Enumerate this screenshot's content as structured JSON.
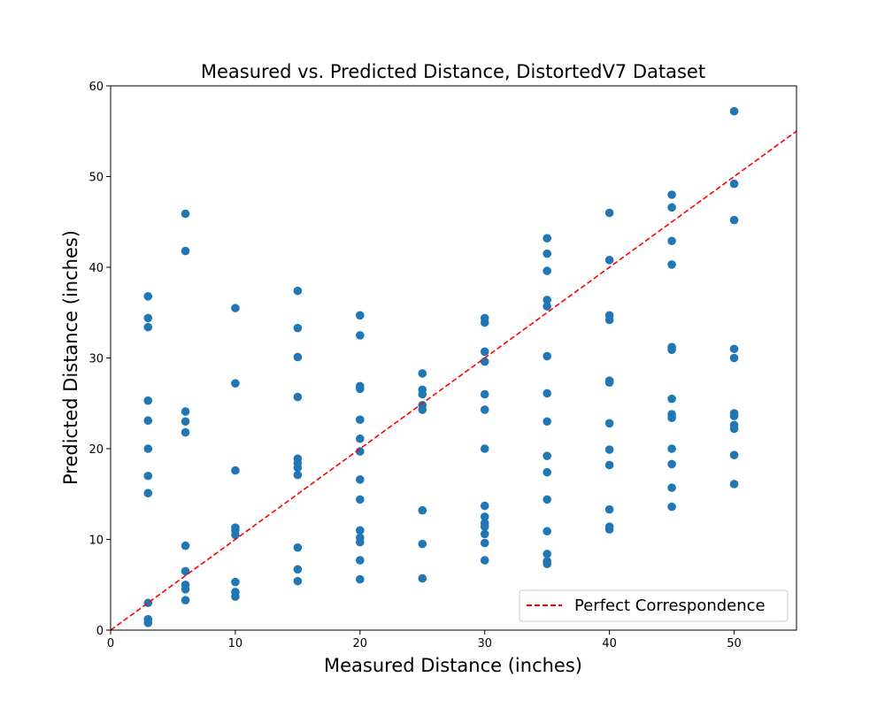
{
  "chart_data": {
    "type": "scatter",
    "title": "Measured vs. Predicted Distance, DistortedV7 Dataset",
    "xlabel": "Measured Distance (inches)",
    "ylabel": "Predicted Distance (inches)",
    "xlim": [
      0,
      55
    ],
    "ylim": [
      0,
      60
    ],
    "xticks": [
      0,
      10,
      20,
      30,
      40,
      50
    ],
    "yticks": [
      0,
      10,
      20,
      30,
      40,
      50,
      60
    ],
    "grid": false,
    "legend_position": "lower-right",
    "point_color": "#1f77b4",
    "reference_line": {
      "label": "Perfect Correspondence",
      "color": "#ff0000",
      "style": "dashed",
      "x": [
        0,
        55
      ],
      "y": [
        0,
        55
      ]
    },
    "points": [
      [
        3,
        36.8
      ],
      [
        3,
        34.4
      ],
      [
        3,
        33.4
      ],
      [
        3,
        25.3
      ],
      [
        3,
        23.1
      ],
      [
        3,
        20.0
      ],
      [
        3,
        17.0
      ],
      [
        3,
        15.1
      ],
      [
        3,
        3.0
      ],
      [
        3,
        1.2
      ],
      [
        3,
        0.8
      ],
      [
        6,
        45.9
      ],
      [
        6,
        41.8
      ],
      [
        6,
        24.1
      ],
      [
        6,
        23.0
      ],
      [
        6,
        21.8
      ],
      [
        6,
        9.3
      ],
      [
        6,
        6.5
      ],
      [
        6,
        5.0
      ],
      [
        6,
        4.5
      ],
      [
        6,
        3.3
      ],
      [
        10,
        35.5
      ],
      [
        10,
        27.2
      ],
      [
        10,
        17.6
      ],
      [
        10,
        11.3
      ],
      [
        10,
        11.0
      ],
      [
        10,
        10.5
      ],
      [
        10,
        5.3
      ],
      [
        10,
        4.2
      ],
      [
        10,
        3.7
      ],
      [
        15,
        37.4
      ],
      [
        15,
        33.3
      ],
      [
        15,
        30.1
      ],
      [
        15,
        25.7
      ],
      [
        15,
        18.9
      ],
      [
        15,
        18.4
      ],
      [
        15,
        17.9
      ],
      [
        15,
        17.1
      ],
      [
        15,
        9.1
      ],
      [
        15,
        6.7
      ],
      [
        15,
        5.4
      ],
      [
        20,
        34.7
      ],
      [
        20,
        32.5
      ],
      [
        20,
        26.9
      ],
      [
        20,
        26.6
      ],
      [
        20,
        23.2
      ],
      [
        20,
        21.1
      ],
      [
        20,
        19.7
      ],
      [
        20,
        16.6
      ],
      [
        20,
        14.4
      ],
      [
        20,
        11.0
      ],
      [
        20,
        10.2
      ],
      [
        20,
        9.7
      ],
      [
        20,
        7.7
      ],
      [
        20,
        5.6
      ],
      [
        25,
        28.3
      ],
      [
        25,
        26.5
      ],
      [
        25,
        26.0
      ],
      [
        25,
        24.8
      ],
      [
        25,
        24.3
      ],
      [
        25,
        13.2
      ],
      [
        25,
        9.5
      ],
      [
        25,
        5.7
      ],
      [
        30,
        34.4
      ],
      [
        30,
        33.9
      ],
      [
        30,
        30.7
      ],
      [
        30,
        29.6
      ],
      [
        30,
        26.0
      ],
      [
        30,
        24.3
      ],
      [
        30,
        20.0
      ],
      [
        30,
        13.7
      ],
      [
        30,
        12.5
      ],
      [
        30,
        11.8
      ],
      [
        30,
        11.4
      ],
      [
        30,
        10.6
      ],
      [
        30,
        9.6
      ],
      [
        30,
        7.7
      ],
      [
        35,
        43.2
      ],
      [
        35,
        41.5
      ],
      [
        35,
        39.6
      ],
      [
        35,
        36.4
      ],
      [
        35,
        35.7
      ],
      [
        35,
        30.2
      ],
      [
        35,
        26.1
      ],
      [
        35,
        23.0
      ],
      [
        35,
        19.2
      ],
      [
        35,
        17.4
      ],
      [
        35,
        14.4
      ],
      [
        35,
        10.9
      ],
      [
        35,
        8.4
      ],
      [
        35,
        7.6
      ],
      [
        35,
        7.3
      ],
      [
        40,
        46.0
      ],
      [
        40,
        40.8
      ],
      [
        40,
        34.7
      ],
      [
        40,
        34.2
      ],
      [
        40,
        27.5
      ],
      [
        40,
        27.3
      ],
      [
        40,
        22.8
      ],
      [
        40,
        19.9
      ],
      [
        40,
        18.2
      ],
      [
        40,
        13.3
      ],
      [
        40,
        11.4
      ],
      [
        40,
        11.1
      ],
      [
        45,
        48.0
      ],
      [
        45,
        46.6
      ],
      [
        45,
        42.9
      ],
      [
        45,
        40.3
      ],
      [
        45,
        31.2
      ],
      [
        45,
        30.9
      ],
      [
        45,
        25.5
      ],
      [
        45,
        23.8
      ],
      [
        45,
        23.4
      ],
      [
        45,
        20.0
      ],
      [
        45,
        18.3
      ],
      [
        45,
        15.7
      ],
      [
        45,
        13.6
      ],
      [
        50,
        57.2
      ],
      [
        50,
        49.2
      ],
      [
        50,
        45.2
      ],
      [
        50,
        31.0
      ],
      [
        50,
        30.0
      ],
      [
        50,
        23.9
      ],
      [
        50,
        23.6
      ],
      [
        50,
        22.6
      ],
      [
        50,
        22.2
      ],
      [
        50,
        19.3
      ],
      [
        50,
        16.1
      ]
    ]
  }
}
